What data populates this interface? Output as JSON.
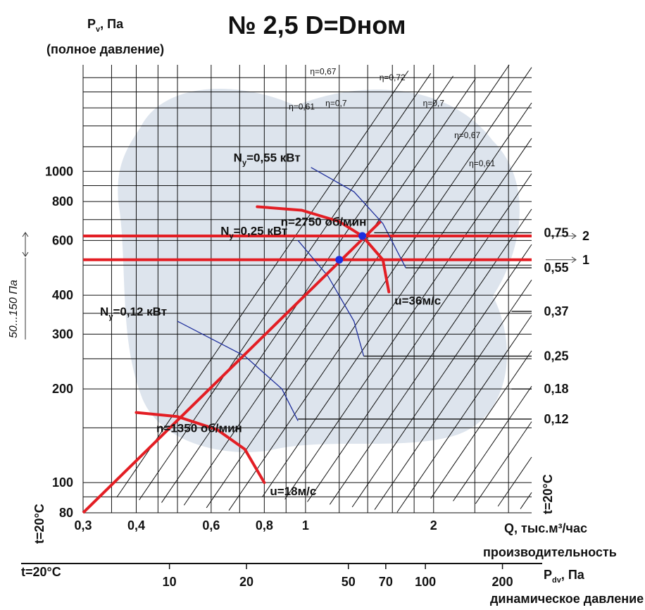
{
  "chart_data": {
    "type": "line",
    "title": "№ 2,5 D=Dном",
    "y_axis": {
      "label": "P",
      "label_sub": "v",
      "label_unit": ", Па",
      "label_note": "(полное давление)",
      "scale": "log",
      "range": [
        80,
        2200
      ],
      "ticks": [
        {
          "value": 80,
          "label": "80"
        },
        {
          "value": 100,
          "label": "100"
        },
        {
          "value": 200,
          "label": "200"
        },
        {
          "value": 300,
          "label": "300"
        },
        {
          "value": 400,
          "label": "400"
        },
        {
          "value": 600,
          "label": "600"
        },
        {
          "value": 800,
          "label": "800"
        },
        {
          "value": 1000,
          "label": "1000"
        }
      ]
    },
    "x_axis": {
      "label": "Q, тыс.м³/час",
      "label_note": "производительность",
      "scale": "log",
      "range": [
        0.3,
        3.4
      ],
      "ticks": [
        {
          "value": 0.3,
          "label": "0,3"
        },
        {
          "value": 0.4,
          "label": "0,4"
        },
        {
          "value": 0.6,
          "label": "0,6"
        },
        {
          "value": 0.8,
          "label": "0,8"
        },
        {
          "value": 1,
          "label": "1"
        },
        {
          "value": 2,
          "label": "2"
        }
      ]
    },
    "x_axis_2": {
      "label": "P",
      "label_sub": "dv",
      "label_unit": ", Па",
      "label_note": "динамическое давление",
      "ticks": [
        {
          "value": 10,
          "label": "10"
        },
        {
          "value": 20,
          "label": "20"
        },
        {
          "value": 50,
          "label": "50"
        },
        {
          "value": 70,
          "label": "70"
        },
        {
          "value": 100,
          "label": "100"
        },
        {
          "value": 200,
          "label": "200"
        }
      ]
    },
    "temperature_labels": {
      "left": "t=20°C",
      "right": "t=20°C",
      "bottom": "t=20°C"
    },
    "pressure_band_label": "50...150 Па",
    "grid": true,
    "efficiency_labels": [
      {
        "label": "η=0,61",
        "q": 0.98,
        "p": 1580
      },
      {
        "label": "η=0,67",
        "q": 1.1,
        "p": 2050
      },
      {
        "label": "η=0,7",
        "q": 1.18,
        "p": 1620
      },
      {
        "label": "η=0,72",
        "q": 1.6,
        "p": 1960
      },
      {
        "label": "η=0,7",
        "q": 2.0,
        "p": 1620
      },
      {
        "label": "η=0,67",
        "q": 2.4,
        "p": 1280
      },
      {
        "label": "η=0,61",
        "q": 2.6,
        "p": 1040
      }
    ],
    "fan_curves": [
      {
        "speed_label": "n=2750 об/мин",
        "tip_speed_label": "u=36м/с",
        "points": [
          [
            0.77,
            770
          ],
          [
            0.98,
            750
          ],
          [
            1.2,
            690
          ],
          [
            1.36,
            620
          ],
          [
            1.52,
            520
          ],
          [
            1.57,
            410
          ]
        ]
      },
      {
        "speed_label": "n=1350 об/мин",
        "tip_speed_label": "u=18м/с",
        "points": [
          [
            0.4,
            168
          ],
          [
            0.5,
            163
          ],
          [
            0.62,
            148
          ],
          [
            0.72,
            128
          ],
          [
            0.8,
            100
          ]
        ]
      }
    ],
    "operating_line": {
      "points": [
        [
          0.3,
          80
        ],
        [
          1.5,
          690
        ]
      ]
    },
    "power_curves": [
      {
        "label": "N",
        "sub": "y",
        "value": "=0,55 кВт",
        "points": [
          [
            1.03,
            1030
          ],
          [
            1.3,
            860
          ],
          [
            1.52,
            680
          ],
          [
            1.72,
            490
          ]
        ]
      },
      {
        "label": "N",
        "sub": "y",
        "value": "=0,25 кВт",
        "points": [
          [
            0.96,
            600
          ],
          [
            1.13,
            460
          ],
          [
            1.3,
            330
          ],
          [
            1.37,
            255
          ]
        ]
      },
      {
        "label": "N",
        "sub": "y",
        "value": "=0,12 кВт",
        "points": [
          [
            0.5,
            330
          ],
          [
            0.72,
            255
          ],
          [
            0.88,
            200
          ],
          [
            0.96,
            158
          ]
        ]
      }
    ],
    "power_steps": [
      {
        "label": "0,75",
        "p": 635,
        "q_from": 1.45
      },
      {
        "label": "0,55",
        "p": 490,
        "q_from": 1.72
      },
      {
        "label": "0,37",
        "p": 355,
        "q_from": 3.05
      },
      {
        "label": "0,25",
        "p": 255,
        "q_from": 1.37
      },
      {
        "label": "0,18",
        "p": 200,
        "q_from": 3.05
      },
      {
        "label": "0,12",
        "p": 160,
        "q_from": 0.96
      }
    ],
    "operating_points": [
      {
        "label": "1",
        "q": 1.2,
        "p": 520
      },
      {
        "label": "2",
        "q": 1.36,
        "p": 620
      }
    ],
    "colors": {
      "curve": "#e31e24",
      "power": "#1f2f9c",
      "point": "#1d2fe0",
      "grid": "#111111"
    }
  }
}
